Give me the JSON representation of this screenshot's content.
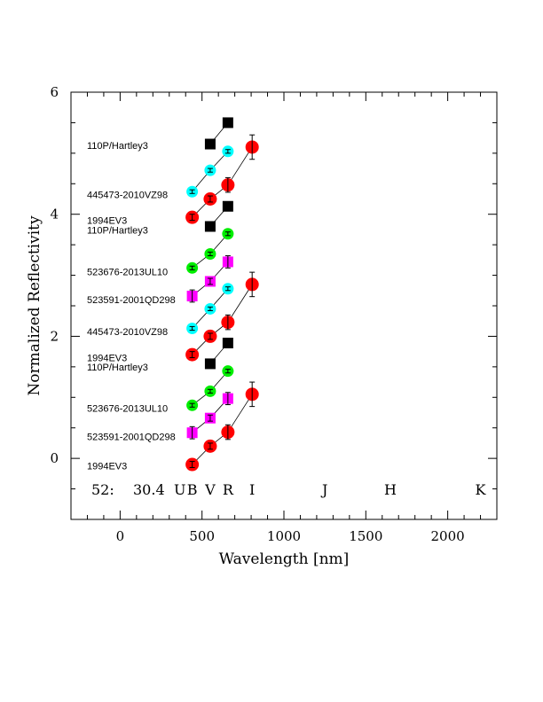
{
  "chart_data": {
    "type": "scatter",
    "xlabel": "Wavelength [nm]",
    "ylabel": "Normalized Reflectivity",
    "xlim": [
      -300,
      2300
    ],
    "ylim": [
      -1,
      6
    ],
    "x_ticks": [
      0,
      500,
      1000,
      1500,
      2000
    ],
    "x_tick_labels": [
      "0",
      "500",
      "1000",
      "1500",
      "2000"
    ],
    "y_ticks": [
      0,
      2,
      4,
      6
    ],
    "y_tick_labels": [
      "0",
      "2",
      "4",
      "6"
    ],
    "grid": false,
    "legend": "none",
    "annotation": {
      "left": "52:",
      "right": "30.4"
    },
    "band_labels": [
      {
        "label": "U",
        "x": 365
      },
      {
        "label": "B",
        "x": 440
      },
      {
        "label": "V",
        "x": 550
      },
      {
        "label": "R",
        "x": 658
      },
      {
        "label": "I",
        "x": 806
      },
      {
        "label": "J",
        "x": 1250
      },
      {
        "label": "H",
        "x": 1650
      },
      {
        "label": "K",
        "x": 2200
      }
    ],
    "series": [
      {
        "name": "1994EV3",
        "color": "#ff0000",
        "marker": "circle",
        "label_y": -0.12,
        "x": [
          440,
          550,
          658,
          806
        ],
        "y": [
          -0.1,
          0.2,
          0.43,
          1.05
        ],
        "err": [
          0.05,
          0.05,
          0.12,
          0.2
        ]
      },
      {
        "name": "523591-2001QD298",
        "color": "#ff00ff",
        "marker": "square",
        "label_y": 0.36,
        "x": [
          440,
          550,
          658
        ],
        "y": [
          0.42,
          0.66,
          0.98
        ],
        "err": [
          0.1,
          0.05,
          0.1
        ]
      },
      {
        "name": "523676-2013UL10",
        "color": "#00ee00",
        "marker": "circle",
        "label_y": 0.82,
        "x": [
          440,
          550,
          658
        ],
        "y": [
          0.87,
          1.1,
          1.43
        ],
        "err": [
          0.03,
          0.03,
          0.03
        ]
      },
      {
        "name": "110P/Hartley3",
        "color": "#000000",
        "marker": "square",
        "label_y": 1.5,
        "x": [
          550,
          658
        ],
        "y": [
          1.55,
          1.89
        ],
        "err": [
          0,
          0
        ]
      },
      {
        "name": "1994EV3",
        "color": "#ff0000",
        "marker": "circle",
        "label_y": 1.65,
        "x": [
          440,
          550,
          658,
          806
        ],
        "y": [
          1.7,
          2.0,
          2.23,
          2.85
        ],
        "err": [
          0.05,
          0.05,
          0.12,
          0.2
        ]
      },
      {
        "name": "445473-2010VZ98",
        "color": "#00ffff",
        "marker": "circle",
        "label_y": 2.08,
        "x": [
          440,
          550,
          658
        ],
        "y": [
          2.13,
          2.45,
          2.78
        ],
        "err": [
          0.03,
          0.03,
          0.03
        ]
      },
      {
        "name": "523591-2001QD298",
        "color": "#ff00ff",
        "marker": "square",
        "label_y": 2.6,
        "x": [
          440,
          550,
          658
        ],
        "y": [
          2.66,
          2.9,
          3.22
        ],
        "err": [
          0.1,
          0.05,
          0.1
        ]
      },
      {
        "name": "523676-2013UL10",
        "color": "#00ee00",
        "marker": "circle",
        "label_y": 3.06,
        "x": [
          440,
          550,
          658
        ],
        "y": [
          3.12,
          3.35,
          3.68
        ],
        "err": [
          0.03,
          0.03,
          0.03
        ]
      },
      {
        "name": "110P/Hartley3",
        "color": "#000000",
        "marker": "square",
        "label_y": 3.74,
        "x": [
          550,
          658
        ],
        "y": [
          3.8,
          4.13
        ],
        "err": [
          0,
          0
        ]
      },
      {
        "name": "1994EV3",
        "color": "#ff0000",
        "marker": "circle",
        "label_y": 3.9,
        "x": [
          440,
          550,
          658,
          806
        ],
        "y": [
          3.95,
          4.25,
          4.48,
          5.1
        ],
        "err": [
          0.05,
          0.05,
          0.12,
          0.2
        ]
      },
      {
        "name": "445473-2010VZ98",
        "color": "#00ffff",
        "marker": "circle",
        "label_y": 4.32,
        "x": [
          440,
          550,
          658
        ],
        "y": [
          4.37,
          4.72,
          5.03
        ],
        "err": [
          0.03,
          0.03,
          0.03
        ]
      },
      {
        "name": "110P/Hartley3",
        "color": "#000000",
        "marker": "square",
        "label_y": 5.13,
        "x": [
          550,
          658
        ],
        "y": [
          5.15,
          5.5
        ],
        "err": [
          0,
          0
        ]
      }
    ]
  }
}
